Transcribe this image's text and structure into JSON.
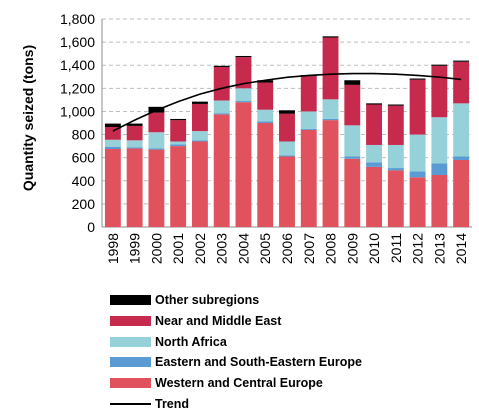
{
  "chart_data": {
    "type": "bar",
    "stacked": true,
    "ylabel": "Quantity seized (tons)",
    "xlabel": "",
    "ylim": [
      0,
      1800
    ],
    "yticks": [
      "0",
      "200",
      "400",
      "600",
      "800",
      "1,000",
      "1,200",
      "1,400",
      "1,600",
      "1,800"
    ],
    "grid": "horizontal dashed",
    "categories": [
      "1998",
      "1999",
      "2000",
      "2001",
      "2002",
      "2003",
      "2004",
      "2005",
      "2006",
      "2007",
      "2008",
      "2009",
      "2010",
      "2011",
      "2012",
      "2013",
      "2014"
    ],
    "series": [
      {
        "name": "Western and Central Europe",
        "color": "#e0535e",
        "values": [
          675,
          680,
          670,
          700,
          740,
          975,
          1080,
          900,
          610,
          840,
          925,
          590,
          520,
          490,
          430,
          450,
          580
        ]
      },
      {
        "name": "Eastern and South-Eastern Europe",
        "color": "#5a9bd3",
        "values": [
          20,
          10,
          10,
          15,
          10,
          10,
          10,
          15,
          10,
          10,
          10,
          20,
          40,
          20,
          50,
          100,
          30
        ]
      },
      {
        "name": "North Africa",
        "color": "#96d1d9",
        "values": [
          60,
          60,
          140,
          25,
          80,
          110,
          110,
          100,
          120,
          150,
          170,
          270,
          150,
          200,
          320,
          400,
          460
        ]
      },
      {
        "name": "Near and Middle East",
        "color": "#c62a4c",
        "values": [
          110,
          125,
          170,
          185,
          235,
          290,
          270,
          235,
          240,
          305,
          535,
          350,
          350,
          340,
          475,
          445,
          360
        ]
      },
      {
        "name": "Other subregions",
        "color": "#000000",
        "values": [
          30,
          20,
          50,
          10,
          20,
          10,
          10,
          20,
          30,
          10,
          10,
          40,
          10,
          10,
          10,
          10,
          10
        ]
      }
    ],
    "trend": {
      "name": "Trend",
      "color": "#000000",
      "values": [
        830,
        925,
        1010,
        1085,
        1150,
        1200,
        1240,
        1270,
        1295,
        1312,
        1322,
        1328,
        1328,
        1322,
        1312,
        1297,
        1277
      ]
    },
    "legend": {
      "position": "bottom",
      "entries": [
        "Other subregions",
        "Near and Middle East",
        "North Africa",
        "Eastern and South-Eastern Europe",
        "Western and Central Europe",
        "Trend"
      ]
    }
  }
}
